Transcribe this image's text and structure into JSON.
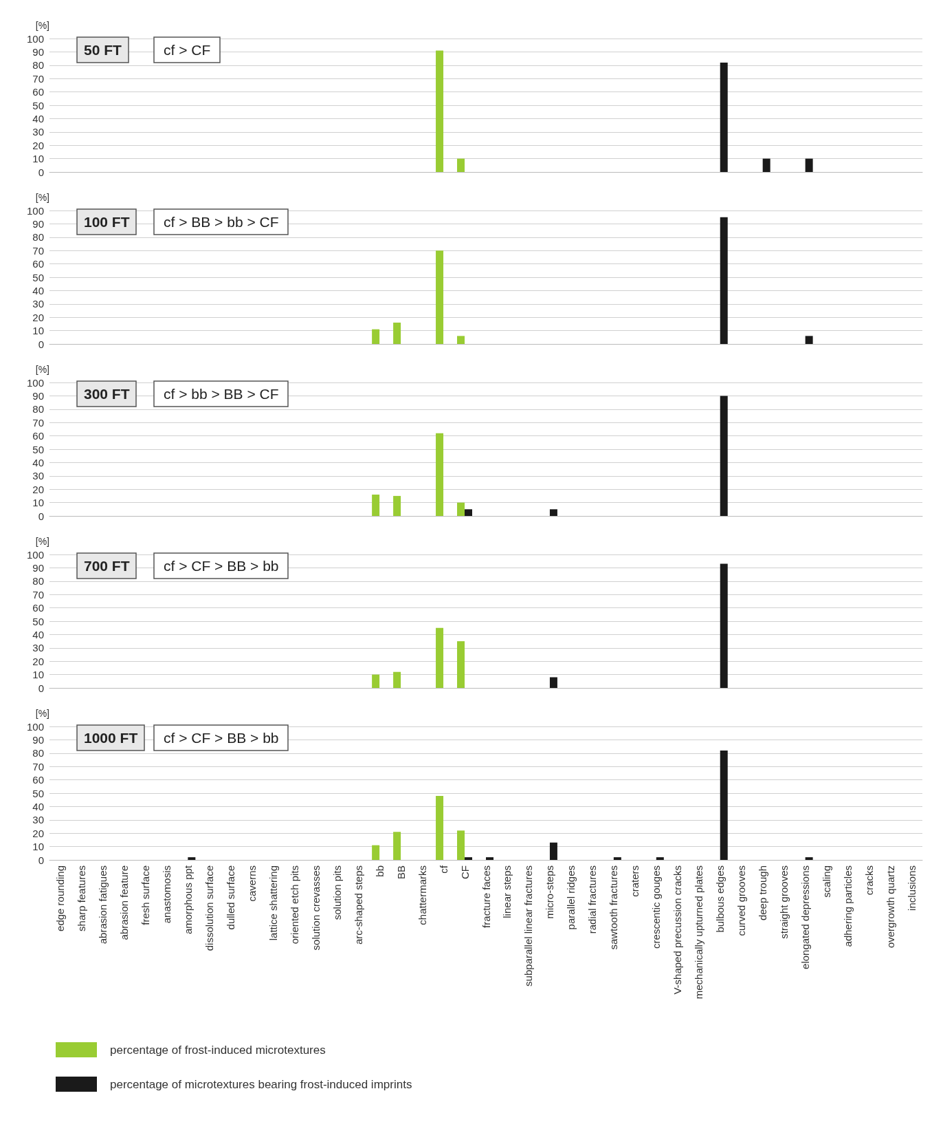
{
  "chart_data": [
    {
      "type": "bar",
      "title": "50 FT",
      "subtitle": "cf > CF",
      "ylabel": "[%]",
      "ylim": [
        0,
        100
      ],
      "yticks": [
        0,
        10,
        20,
        30,
        40,
        50,
        60,
        70,
        80,
        90,
        100
      ],
      "grid": "y",
      "tick_labels": "y",
      "categories": [
        null,
        null,
        null,
        null,
        null,
        null,
        null,
        null,
        null,
        null,
        null,
        null,
        null,
        null,
        null,
        null,
        null,
        null,
        null,
        null,
        null,
        null,
        null,
        null,
        null,
        null,
        null,
        null,
        null,
        null,
        null,
        null,
        null,
        null,
        null,
        null,
        null,
        null,
        null,
        null,
        null
      ],
      "series": [
        {
          "color": "#99cc33",
          "values": [
            null,
            null,
            null,
            null,
            null,
            null,
            null,
            null,
            null,
            null,
            null,
            null,
            null,
            null,
            null,
            null,
            null,
            null,
            91,
            10,
            null,
            null,
            null,
            null,
            null,
            null,
            null,
            null,
            null,
            null,
            null,
            null,
            null,
            null,
            null,
            null,
            null,
            null,
            null,
            null,
            null
          ]
        },
        {
          "color": "#1a1a1a",
          "values": [
            null,
            null,
            null,
            null,
            null,
            null,
            null,
            null,
            null,
            null,
            null,
            null,
            null,
            null,
            null,
            null,
            null,
            null,
            null,
            null,
            null,
            null,
            null,
            null,
            null,
            null,
            null,
            null,
            null,
            null,
            null,
            82,
            null,
            10,
            null,
            10,
            null,
            null,
            null,
            null,
            null
          ]
        }
      ]
    },
    {
      "type": "bar",
      "title": "100 FT",
      "subtitle": "cf > BB > bb > CF",
      "ylabel": "[%]",
      "ylim": [
        0,
        100
      ],
      "yticks": [
        0,
        10,
        20,
        30,
        40,
        50,
        60,
        70,
        80,
        90,
        100
      ],
      "grid": "y",
      "tick_labels": "y",
      "categories": [
        null,
        null,
        null,
        null,
        null,
        null,
        null,
        null,
        null,
        null,
        null,
        null,
        null,
        null,
        null,
        null,
        null,
        null,
        null,
        null,
        null,
        null,
        null,
        null,
        null,
        null,
        null,
        null,
        null,
        null,
        null,
        null,
        null,
        null,
        null,
        null,
        null,
        null,
        null,
        null,
        null
      ],
      "series": [
        {
          "color": "#99cc33",
          "values": [
            null,
            null,
            null,
            null,
            null,
            null,
            null,
            null,
            null,
            null,
            null,
            null,
            null,
            null,
            null,
            11,
            16,
            null,
            70,
            6,
            null,
            null,
            null,
            null,
            null,
            null,
            null,
            null,
            null,
            null,
            null,
            null,
            null,
            null,
            null,
            null,
            null,
            null,
            null,
            null,
            null
          ]
        },
        {
          "color": "#1a1a1a",
          "values": [
            null,
            null,
            null,
            null,
            null,
            null,
            null,
            null,
            null,
            null,
            null,
            null,
            null,
            null,
            null,
            null,
            null,
            null,
            null,
            null,
            null,
            null,
            null,
            null,
            null,
            null,
            null,
            null,
            null,
            null,
            null,
            95,
            null,
            null,
            null,
            6,
            null,
            null,
            null,
            null,
            null
          ]
        }
      ]
    },
    {
      "type": "bar",
      "title": "300 FT",
      "subtitle": "cf > bb > BB > CF",
      "ylabel": "[%]",
      "ylim": [
        0,
        100
      ],
      "yticks": [
        0,
        10,
        20,
        30,
        40,
        50,
        60,
        70,
        80,
        90,
        100
      ],
      "grid": "y",
      "tick_labels": "y",
      "categories": [
        null,
        null,
        null,
        null,
        null,
        null,
        null,
        null,
        null,
        null,
        null,
        null,
        null,
        null,
        null,
        null,
        null,
        null,
        null,
        null,
        null,
        null,
        null,
        null,
        null,
        null,
        null,
        null,
        null,
        null,
        null,
        null,
        null,
        null,
        null,
        null,
        null,
        null,
        null,
        null,
        null
      ],
      "series": [
        {
          "color": "#99cc33",
          "values": [
            null,
            null,
            null,
            null,
            null,
            null,
            null,
            null,
            null,
            null,
            null,
            null,
            null,
            null,
            null,
            16,
            15,
            null,
            62,
            10,
            null,
            null,
            null,
            null,
            null,
            null,
            null,
            null,
            null,
            null,
            null,
            null,
            null,
            null,
            null,
            null,
            null,
            null,
            null,
            null,
            null
          ]
        },
        {
          "color": "#1a1a1a",
          "values": [
            null,
            null,
            null,
            null,
            null,
            null,
            null,
            null,
            null,
            null,
            null,
            null,
            null,
            null,
            null,
            null,
            null,
            null,
            null,
            5,
            null,
            null,
            null,
            5,
            null,
            null,
            null,
            null,
            null,
            null,
            null,
            90,
            null,
            null,
            null,
            null,
            null,
            null,
            null,
            null,
            null
          ]
        }
      ]
    },
    {
      "type": "bar",
      "title": "700 FT",
      "subtitle": "cf > CF > BB > bb",
      "ylabel": "[%]",
      "ylim": [
        0,
        100
      ],
      "yticks": [
        0,
        10,
        20,
        30,
        40,
        50,
        60,
        70,
        80,
        90,
        100
      ],
      "grid": "y",
      "tick_labels": "y",
      "categories": [
        null,
        null,
        null,
        null,
        null,
        null,
        null,
        null,
        null,
        null,
        null,
        null,
        null,
        null,
        null,
        null,
        null,
        null,
        null,
        null,
        null,
        null,
        null,
        null,
        null,
        null,
        null,
        null,
        null,
        null,
        null,
        null,
        null,
        null,
        null,
        null,
        null,
        null,
        null,
        null,
        null
      ],
      "series": [
        {
          "color": "#99cc33",
          "values": [
            null,
            null,
            null,
            null,
            null,
            null,
            null,
            null,
            null,
            null,
            null,
            null,
            null,
            null,
            null,
            10,
            12,
            null,
            45,
            35,
            null,
            null,
            null,
            null,
            null,
            null,
            null,
            null,
            null,
            null,
            null,
            null,
            null,
            null,
            null,
            null,
            null,
            null,
            null,
            null,
            null
          ]
        },
        {
          "color": "#1a1a1a",
          "values": [
            null,
            null,
            null,
            null,
            null,
            null,
            null,
            null,
            null,
            null,
            null,
            null,
            null,
            null,
            null,
            null,
            null,
            null,
            null,
            null,
            null,
            null,
            null,
            8,
            null,
            null,
            null,
            null,
            null,
            null,
            null,
            93,
            null,
            null,
            null,
            null,
            null,
            null,
            null,
            null,
            null
          ]
        }
      ]
    },
    {
      "type": "bar",
      "title": "1000 FT",
      "subtitle": "cf > CF > BB > bb",
      "ylabel": "[%]",
      "ylim": [
        0,
        100
      ],
      "yticks": [
        0,
        10,
        20,
        30,
        40,
        50,
        60,
        70,
        80,
        90,
        100
      ],
      "grid": "y",
      "legend": "bottom left",
      "categories": [
        "edge rounding",
        "sharp features",
        "abrasion fatigues",
        "abrasion feature",
        "fresh surface",
        "anastomosis",
        "amorphous ppt",
        "dissolution surface",
        "dulled surface",
        "caverns",
        "lattice shattering",
        "oriented etch pits",
        "solution crevasses",
        "solution pits",
        "arc-shaped steps",
        "bb",
        "BB",
        "chattermarks",
        "cf",
        "CF",
        "fracture faces",
        "linear steps",
        "subparallel linear fractures",
        "micro-steps",
        "parallel ridges",
        "radial fractures",
        "sawtooth fractures",
        "craters",
        "crescentic gouges",
        "V-shaped precussion cracks",
        "mechanically upturned plates",
        "bulbous edges",
        "curved grooves",
        "deep trough",
        "straight grooves",
        "elongated depressions",
        "scaling",
        "adhering particles",
        "cracks",
        "overgrowth quartz",
        "inclusions"
      ],
      "series": [
        {
          "name": "percentage of frost-induced microtextures",
          "color": "#99cc33",
          "values": [
            null,
            null,
            null,
            null,
            null,
            null,
            null,
            null,
            null,
            null,
            null,
            null,
            null,
            null,
            null,
            11,
            21,
            null,
            48,
            22,
            null,
            null,
            null,
            null,
            null,
            null,
            null,
            null,
            null,
            null,
            null,
            null,
            null,
            null,
            null,
            null,
            null,
            null,
            null,
            null,
            null
          ]
        },
        {
          "name": "percentage of microtextures bearing frost-induced imprints",
          "color": "#1a1a1a",
          "values": [
            null,
            null,
            null,
            null,
            null,
            null,
            2,
            null,
            null,
            null,
            null,
            null,
            null,
            null,
            null,
            null,
            null,
            null,
            null,
            2,
            2,
            null,
            null,
            13,
            null,
            null,
            2,
            null,
            2,
            null,
            null,
            82,
            null,
            null,
            null,
            2,
            null,
            null,
            null,
            null,
            null
          ]
        }
      ]
    }
  ]
}
